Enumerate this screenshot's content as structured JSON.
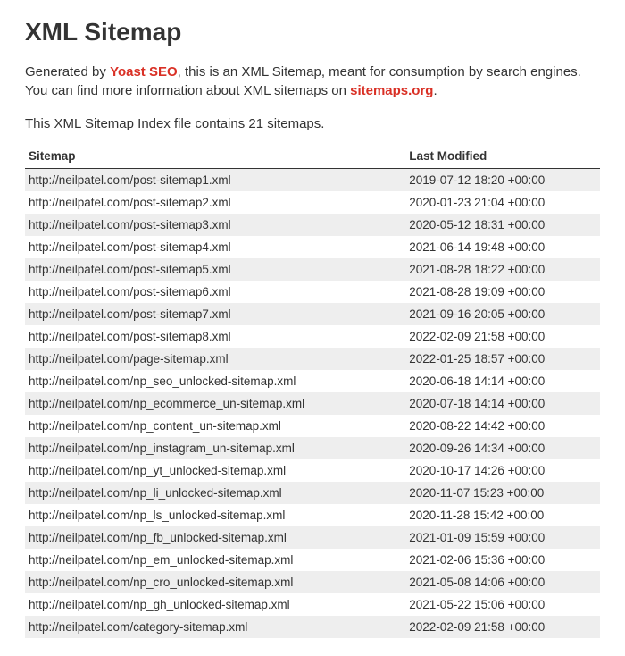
{
  "title": "XML Sitemap",
  "intro": {
    "prefix": "Generated by ",
    "brand": "Yoast SEO",
    "middle": ", this is an XML Sitemap, meant for consumption by search engines. You can find more information about XML sitemaps on ",
    "link": "sitemaps.org",
    "suffix": "."
  },
  "count_line": "This XML Sitemap Index file contains 21 sitemaps.",
  "columns": {
    "sitemap": "Sitemap",
    "last_modified": "Last Modified"
  },
  "rows": [
    {
      "url": "http://neilpatel.com/post-sitemap1.xml",
      "modified": "2019-07-12 18:20 +00:00"
    },
    {
      "url": "http://neilpatel.com/post-sitemap2.xml",
      "modified": "2020-01-23 21:04 +00:00"
    },
    {
      "url": "http://neilpatel.com/post-sitemap3.xml",
      "modified": "2020-05-12 18:31 +00:00"
    },
    {
      "url": "http://neilpatel.com/post-sitemap4.xml",
      "modified": "2021-06-14 19:48 +00:00"
    },
    {
      "url": "http://neilpatel.com/post-sitemap5.xml",
      "modified": "2021-08-28 18:22 +00:00"
    },
    {
      "url": "http://neilpatel.com/post-sitemap6.xml",
      "modified": "2021-08-28 19:09 +00:00"
    },
    {
      "url": "http://neilpatel.com/post-sitemap7.xml",
      "modified": "2021-09-16 20:05 +00:00"
    },
    {
      "url": "http://neilpatel.com/post-sitemap8.xml",
      "modified": "2022-02-09 21:58 +00:00"
    },
    {
      "url": "http://neilpatel.com/page-sitemap.xml",
      "modified": "2022-01-25 18:57 +00:00"
    },
    {
      "url": "http://neilpatel.com/np_seo_unlocked-sitemap.xml",
      "modified": "2020-06-18 14:14 +00:00"
    },
    {
      "url": "http://neilpatel.com/np_ecommerce_un-sitemap.xml",
      "modified": "2020-07-18 14:14 +00:00"
    },
    {
      "url": "http://neilpatel.com/np_content_un-sitemap.xml",
      "modified": "2020-08-22 14:42 +00:00"
    },
    {
      "url": "http://neilpatel.com/np_instagram_un-sitemap.xml",
      "modified": "2020-09-26 14:34 +00:00"
    },
    {
      "url": "http://neilpatel.com/np_yt_unlocked-sitemap.xml",
      "modified": "2020-10-17 14:26 +00:00"
    },
    {
      "url": "http://neilpatel.com/np_li_unlocked-sitemap.xml",
      "modified": "2020-11-07 15:23 +00:00"
    },
    {
      "url": "http://neilpatel.com/np_ls_unlocked-sitemap.xml",
      "modified": "2020-11-28 15:42 +00:00"
    },
    {
      "url": "http://neilpatel.com/np_fb_unlocked-sitemap.xml",
      "modified": "2021-01-09 15:59 +00:00"
    },
    {
      "url": "http://neilpatel.com/np_em_unlocked-sitemap.xml",
      "modified": "2021-02-06 15:36 +00:00"
    },
    {
      "url": "http://neilpatel.com/np_cro_unlocked-sitemap.xml",
      "modified": "2021-05-08 14:06 +00:00"
    },
    {
      "url": "http://neilpatel.com/np_gh_unlocked-sitemap.xml",
      "modified": "2021-05-22 15:06 +00:00"
    },
    {
      "url": "http://neilpatel.com/category-sitemap.xml",
      "modified": "2022-02-09 21:58 +00:00"
    }
  ],
  "colors": {
    "brand": "#d93025",
    "text": "#333333",
    "row_alt": "#eeeeee",
    "background": "#ffffff"
  }
}
